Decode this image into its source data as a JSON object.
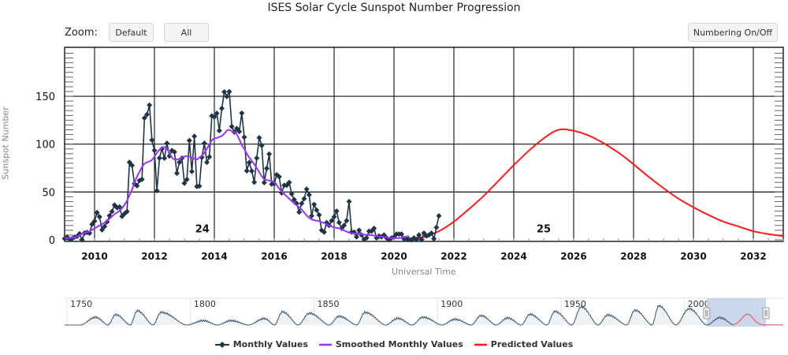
{
  "header": {
    "title": "ISES Solar Cycle Sunspot Number Progression",
    "zoom_label": "Zoom:",
    "zoom_default": "Default",
    "zoom_all": "All",
    "numbering_toggle": "Numbering On/Off"
  },
  "colors": {
    "monthly": "#1e3548",
    "smoothed": "#9b30ff",
    "predicted": "#ff1a1a",
    "grid": "#000000",
    "navigator_mask": "#c5d4ea",
    "navigator_line": "#45607a"
  },
  "legend": [
    {
      "label": "Monthly Values",
      "series": "monthly"
    },
    {
      "label": "Smoothed Monthly Values",
      "series": "smoothed"
    },
    {
      "label": "Predicted Values",
      "series": "predicted"
    }
  ],
  "navigator": {
    "labels": [
      "1750",
      "1800",
      "1850",
      "1900",
      "1950",
      "2000"
    ],
    "range_start": 1749,
    "range_end": 2040,
    "selected_start": 2009,
    "selected_end": 2033
  },
  "chart_data": {
    "type": "line",
    "title": "ISES Solar Cycle Sunspot Number Progression",
    "xlabel": "Universal Time",
    "ylabel": "Sunspot Number",
    "xlim": [
      2009.0,
      2033.0
    ],
    "ylim": [
      -2,
      200
    ],
    "xticks": [
      "2010",
      "2012",
      "2014",
      "2016",
      "2018",
      "2020",
      "2022",
      "2024",
      "2026",
      "2028",
      "2030",
      "2032"
    ],
    "yticks": [
      "0",
      "50",
      "100",
      "150"
    ],
    "grid": true,
    "legend_position": "bottom-center",
    "annotations": [
      {
        "text": "24",
        "x": 2013.6,
        "y": 12
      },
      {
        "text": "25",
        "x": 2025.0,
        "y": 12
      }
    ],
    "series": [
      {
        "name": "Monthly Values",
        "start": 2009.0,
        "step_months": 1,
        "values": [
          1.2,
          2.9,
          0.7,
          1.2,
          2.9,
          3.6,
          6.4,
          0.0,
          7.1,
          7.7,
          6.9,
          16.3,
          19.5,
          28.5,
          24.0,
          10.4,
          13.9,
          18.8,
          25.2,
          29.6,
          36.4,
          33.6,
          34.4,
          24.5,
          27.3,
          29.6,
          81.0,
          77.8,
          58.6,
          56.5,
          61.9,
          63.2,
          127.3,
          131.0,
          140.8,
          104.3,
          93.5,
          51.3,
          85.4,
          95.0,
          85.3,
          100.9,
          87.6,
          93.4,
          91.8,
          69.6,
          81.0,
          85.3,
          59.2,
          63.1,
          103.8,
          71.4,
          108.2,
          55.7,
          56.2,
          86.1,
          101.0,
          81.0,
          86.7,
          129.5,
          128.4,
          132.2,
          114.1,
          137.4,
          154.6,
          149.7,
          154.9,
          118.4,
          112.5,
          116.3,
          113.2,
          132.4,
          107.3,
          72.0,
          80.8,
          71.8,
          60.2,
          85.4,
          106.7,
          98.5,
          59.8,
          74.6,
          89.7,
          58.1,
          58.7,
          68.0,
          66.0,
          49.0,
          57.0,
          57.0,
          60.0,
          48.0,
          42.0,
          38.0,
          29.0,
          38.0,
          43.0,
          53.0,
          47.0,
          25.0,
          37.0,
          31.0,
          26.0,
          10.0,
          8.0,
          18.0,
          15.0,
          20.0,
          24.0,
          30.0,
          18.0,
          12.0,
          15.0,
          20.0,
          40.0,
          8.0,
          8.0,
          3.0,
          10.0,
          5.0,
          0.5,
          2.0,
          9.0,
          9.0,
          12.0,
          2.0,
          4.0,
          3.0,
          5.0,
          2.0,
          0.0,
          2.0,
          3.0,
          6.0,
          6.0,
          6.0,
          1.0,
          1.0,
          0.5,
          0.0,
          2.0,
          0.3,
          5.0,
          0.2,
          7.0,
          4.0,
          5.0,
          7.0,
          1.0,
          13.0,
          25.0
        ]
      },
      {
        "name": "Smoothed Monthly Values",
        "start": 2009.0,
        "step_months": 1,
        "values": [
          1.8,
          1.9,
          2.0,
          2.2,
          2.7,
          3.6,
          4.8,
          6.2,
          7.1,
          7.9,
          9.0,
          10.5,
          12.0,
          13.5,
          15.0,
          16.4,
          18.0,
          20.0,
          22.0,
          24.5,
          26.8,
          28.5,
          30.5,
          33.0,
          36.5,
          41.0,
          46.5,
          52.5,
          59.5,
          66.0,
          71.0,
          76.0,
          79.5,
          81.0,
          82.0,
          83.5,
          87.0,
          91.0,
          94.0,
          96.0,
          97.0,
          95.0,
          91.0,
          86.0,
          84.0,
          84.0,
          84.5,
          86.0,
          87.0,
          87.5,
          87.0,
          86.0,
          84.5,
          84.0,
          86.0,
          88.0,
          91.0,
          95.0,
          99.5,
          104.0,
          106.0,
          106.5,
          107.5,
          108.5,
          111.0,
          114.0,
          115.0,
          113.5,
          112.5,
          110.0,
          105.0,
          99.0,
          95.0,
          90.0,
          86.0,
          82.5,
          79.0,
          75.0,
          70.5,
          66.5,
          63.5,
          62.5,
          62.0,
          61.5,
          60.0,
          57.0,
          53.5,
          50.5,
          48.0,
          45.5,
          43.0,
          40.5,
          38.0,
          36.0,
          34.0,
          31.5,
          28.5,
          25.5,
          23.0,
          21.5,
          20.5,
          20.0,
          19.5,
          18.5,
          17.5,
          16.5,
          15.0,
          14.0,
          13.0,
          12.5,
          12.0,
          11.0,
          9.8,
          8.5,
          7.5,
          7.0,
          6.7,
          6.5,
          6.3,
          6.0,
          5.6,
          5.2,
          5.0,
          4.8,
          4.5,
          4.0,
          3.6,
          3.2,
          3.0,
          2.6,
          2.2,
          2.0,
          1.9,
          1.8,
          1.9,
          2.2,
          2.7,
          3.3,
          4.0
        ]
      },
      {
        "name": "Predicted Values",
        "start": 2020.5,
        "peak_year": 2025.5,
        "peak_value": 115,
        "points": [
          [
            2020.5,
            0
          ],
          [
            2021.0,
            3
          ],
          [
            2021.5,
            9
          ],
          [
            2022.0,
            19
          ],
          [
            2022.5,
            32
          ],
          [
            2023.0,
            46
          ],
          [
            2023.5,
            62
          ],
          [
            2024.0,
            78
          ],
          [
            2024.5,
            93
          ],
          [
            2025.0,
            106
          ],
          [
            2025.5,
            115
          ],
          [
            2026.0,
            114
          ],
          [
            2026.5,
            109
          ],
          [
            2027.0,
            101
          ],
          [
            2027.5,
            91
          ],
          [
            2028.0,
            79
          ],
          [
            2028.5,
            66
          ],
          [
            2029.0,
            54
          ],
          [
            2029.5,
            43
          ],
          [
            2030.0,
            34
          ],
          [
            2030.5,
            26
          ],
          [
            2031.0,
            19
          ],
          [
            2031.5,
            14
          ],
          [
            2032.0,
            9
          ],
          [
            2032.5,
            6
          ],
          [
            2033.0,
            4
          ]
        ]
      }
    ]
  }
}
